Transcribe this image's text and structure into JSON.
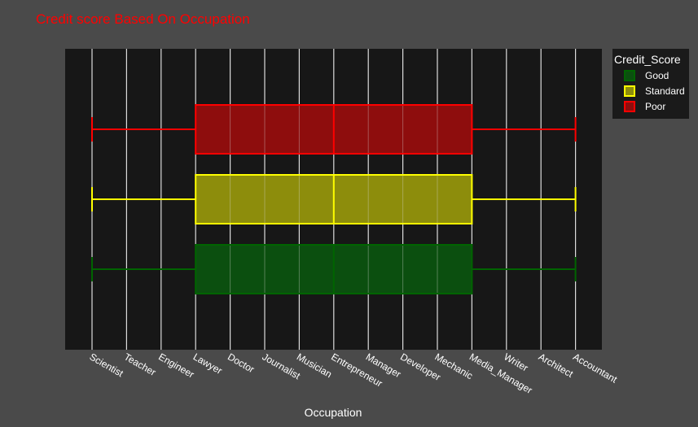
{
  "colors": {
    "page_background": "#4a4a4a",
    "plot_background": "#171717",
    "gridline": "#dcdcdc",
    "text": "#ffffff",
    "title": "#ff0000"
  },
  "chart_data": {
    "type": "box",
    "title": "Credit score Based On Occupation",
    "xlabel": "Occupation",
    "ylabel": "",
    "orientation": "horizontal",
    "categories": [
      "Scientist",
      "Teacher",
      "Engineer",
      "Lawyer",
      "Doctor",
      "Journalist",
      "Musician",
      "Entrepreneur",
      "Manager",
      "Developer",
      "Mechanic",
      "Media_Manager",
      "Writer",
      "Architect",
      "Accountant"
    ],
    "legend": {
      "title": "Credit_Score",
      "position": "top-right"
    },
    "grid": {
      "vertical": true,
      "horizontal": false
    },
    "series": [
      {
        "name": "Good",
        "color": "#006400",
        "fill": "#0b4f0f",
        "min": "Scientist",
        "q1": "Lawyer",
        "median": "Entrepreneur",
        "q3": "Media_Manager",
        "max": "Accountant"
      },
      {
        "name": "Standard",
        "color": "#ffff00",
        "fill": "#8d8d0c",
        "min": "Scientist",
        "q1": "Lawyer",
        "median": "Entrepreneur",
        "q3": "Media_Manager",
        "max": "Accountant"
      },
      {
        "name": "Poor",
        "color": "#ff0000",
        "fill": "#8e0d0d",
        "min": "Scientist",
        "q1": "Lawyer",
        "median": "Entrepreneur",
        "q3": "Media_Manager",
        "max": "Accountant"
      }
    ]
  }
}
